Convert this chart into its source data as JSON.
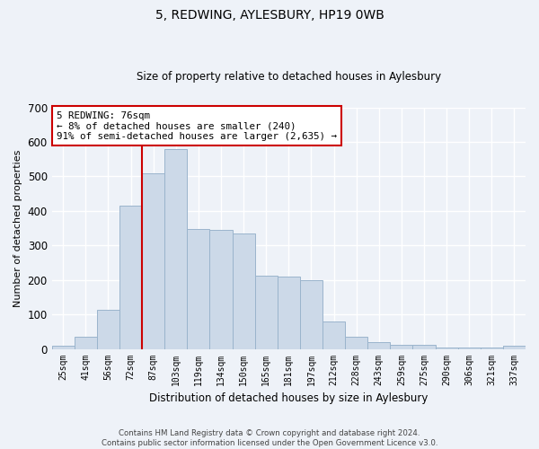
{
  "title": "5, REDWING, AYLESBURY, HP19 0WB",
  "subtitle": "Size of property relative to detached houses in Aylesbury",
  "xlabel": "Distribution of detached houses by size in Aylesbury",
  "ylabel": "Number of detached properties",
  "bar_color": "#ccd9e8",
  "bar_edge_color": "#9ab4cc",
  "categories": [
    "25sqm",
    "41sqm",
    "56sqm",
    "72sqm",
    "87sqm",
    "103sqm",
    "119sqm",
    "134sqm",
    "150sqm",
    "165sqm",
    "181sqm",
    "197sqm",
    "212sqm",
    "228sqm",
    "243sqm",
    "259sqm",
    "275sqm",
    "290sqm",
    "306sqm",
    "321sqm",
    "337sqm"
  ],
  "values": [
    10,
    35,
    113,
    415,
    510,
    578,
    348,
    345,
    335,
    212,
    210,
    200,
    80,
    35,
    20,
    13,
    13,
    5,
    5,
    4,
    8
  ],
  "ylim": [
    0,
    700
  ],
  "yticks": [
    0,
    100,
    200,
    300,
    400,
    500,
    600,
    700
  ],
  "vline_x_index": 3,
  "vline_color": "#cc0000",
  "annotation_text": "5 REDWING: 76sqm\n← 8% of detached houses are smaller (240)\n91% of semi-detached houses are larger (2,635) →",
  "annotation_box_color": "#ffffff",
  "annotation_box_edge": "#cc0000",
  "footer_line1": "Contains HM Land Registry data © Crown copyright and database right 2024.",
  "footer_line2": "Contains public sector information licensed under the Open Government Licence v3.0.",
  "bg_color": "#eef2f8",
  "grid_color": "#ffffff"
}
